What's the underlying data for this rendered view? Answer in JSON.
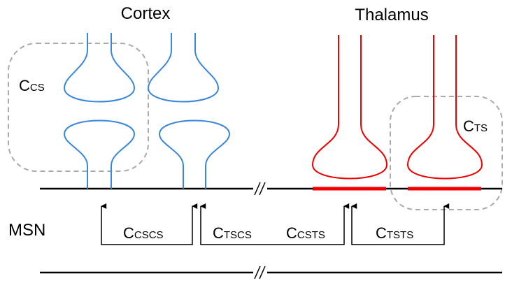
{
  "headings": {
    "cortex": "Cortex",
    "thalamus": "Thalamus",
    "msn": "MSN"
  },
  "labels": [
    {
      "main": "C",
      "sub": "CS"
    },
    {
      "main": "C",
      "sub": "TS"
    },
    {
      "main": "C",
      "sub": "CSCS"
    },
    {
      "main": "C",
      "sub": "TSCS"
    },
    {
      "main": "C",
      "sub": "CSTS"
    },
    {
      "main": "C",
      "sub": "TSTS"
    }
  ]
}
